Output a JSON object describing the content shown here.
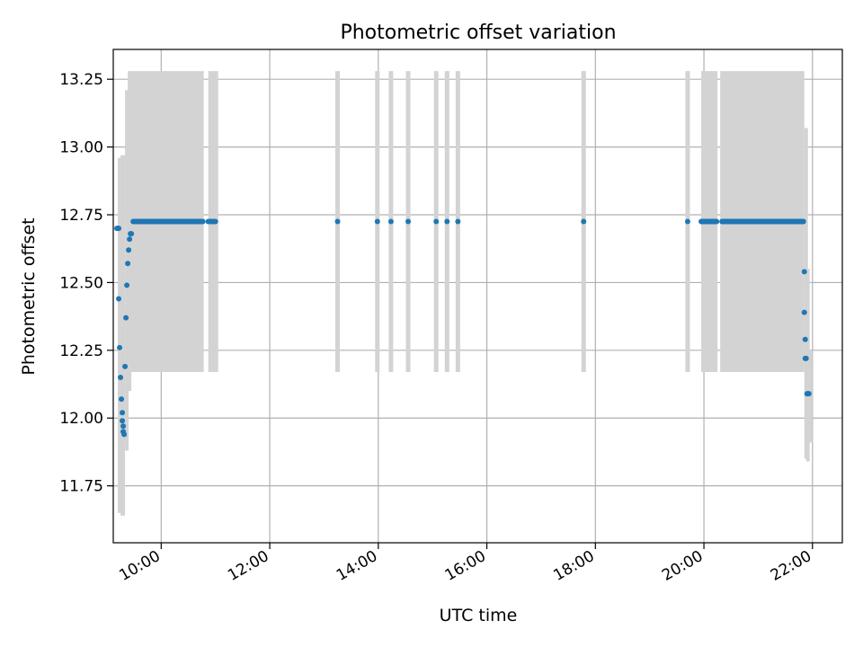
{
  "chart_data": {
    "type": "scatter",
    "title": "Photometric offset variation",
    "xlabel": "UTC time",
    "ylabel": "Photometric offset",
    "xlim": [
      "09:07",
      "22:33"
    ],
    "ylim": [
      11.54,
      13.36
    ],
    "x_ticks": [
      "10:00",
      "12:00",
      "14:00",
      "16:00",
      "18:00",
      "20:00",
      "22:00"
    ],
    "y_ticks": [
      "11.75",
      "12.00",
      "12.25",
      "12.50",
      "12.75",
      "13.00",
      "13.25"
    ],
    "grid": true,
    "colors": {
      "points": "#1f77b4",
      "error_bars": "#d3d3d3",
      "grid": "#b0b0b0"
    },
    "error_bands": [
      {
        "x_start": "09:12",
        "x_end": "09:15",
        "low": 11.65,
        "high": 12.96
      },
      {
        "x_start": "09:15",
        "x_end": "09:20",
        "low": 11.64,
        "high": 12.97
      },
      {
        "x_start": "09:20",
        "x_end": "09:23",
        "low": 11.88,
        "high": 13.21
      },
      {
        "x_start": "09:23",
        "x_end": "09:26",
        "low": 12.1,
        "high": 13.28
      },
      {
        "x_start": "09:26",
        "x_end": "10:47",
        "low": 12.17,
        "high": 13.28
      },
      {
        "x_start": "10:52",
        "x_end": "11:03",
        "low": 12.17,
        "high": 13.28
      },
      {
        "x_start": "19:57",
        "x_end": "20:15",
        "low": 12.17,
        "high": 13.28
      },
      {
        "x_start": "20:18",
        "x_end": "21:51",
        "low": 12.17,
        "high": 13.28
      },
      {
        "x_start": "21:51",
        "x_end": "21:53",
        "low": 11.85,
        "high": 13.07
      },
      {
        "x_start": "21:53",
        "x_end": "21:56",
        "low": 11.84,
        "high": 12.55
      },
      {
        "x_start": "21:56",
        "x_end": "21:59",
        "low": 11.91,
        "high": 12.25
      }
    ],
    "error_bars": [
      {
        "x": "13:15",
        "low": 12.17,
        "high": 13.28
      },
      {
        "x": "13:59",
        "low": 12.17,
        "high": 13.28
      },
      {
        "x": "14:14",
        "low": 12.17,
        "high": 13.28
      },
      {
        "x": "14:33",
        "low": 12.17,
        "high": 13.28
      },
      {
        "x": "15:04",
        "low": 12.17,
        "high": 13.28
      },
      {
        "x": "15:16",
        "low": 12.17,
        "high": 13.28
      },
      {
        "x": "15:28",
        "low": 12.17,
        "high": 13.28
      },
      {
        "x": "17:47",
        "low": 12.17,
        "high": 13.28
      },
      {
        "x": "19:42",
        "low": 12.17,
        "high": 13.28
      }
    ],
    "point_runs": [
      {
        "x_start": "09:29",
        "x_end": "10:46",
        "count": 140,
        "y": 12.725
      },
      {
        "x_start": "10:52",
        "x_end": "11:00",
        "count": 6,
        "y": 12.725
      },
      {
        "x_start": "19:57",
        "x_end": "20:14",
        "count": 30,
        "y": 12.725
      },
      {
        "x_start": "20:20",
        "x_end": "21:50",
        "count": 170,
        "y": 12.725
      }
    ],
    "points": [
      {
        "x": "09:11",
        "y": 12.7
      },
      {
        "x": "09:12",
        "y": 12.7
      },
      {
        "x": "09:13",
        "y": 12.7
      },
      {
        "x": "09:13",
        "y": 12.44
      },
      {
        "x": "09:14",
        "y": 12.26
      },
      {
        "x": "09:15",
        "y": 12.15
      },
      {
        "x": "09:16",
        "y": 12.07
      },
      {
        "x": "09:17",
        "y": 12.02
      },
      {
        "x": "09:17",
        "y": 11.99
      },
      {
        "x": "09:18",
        "y": 11.97
      },
      {
        "x": "09:18",
        "y": 11.95
      },
      {
        "x": "09:19",
        "y": 11.94
      },
      {
        "x": "09:20",
        "y": 12.19
      },
      {
        "x": "09:21",
        "y": 12.37
      },
      {
        "x": "09:22",
        "y": 12.49
      },
      {
        "x": "09:23",
        "y": 12.57
      },
      {
        "x": "09:24",
        "y": 12.62
      },
      {
        "x": "09:25",
        "y": 12.66
      },
      {
        "x": "09:26",
        "y": 12.68
      },
      {
        "x": "09:27",
        "y": 12.68
      },
      {
        "x": "13:15",
        "y": 12.725
      },
      {
        "x": "13:59",
        "y": 12.725
      },
      {
        "x": "14:14",
        "y": 12.725
      },
      {
        "x": "14:33",
        "y": 12.725
      },
      {
        "x": "15:04",
        "y": 12.725
      },
      {
        "x": "15:16",
        "y": 12.725
      },
      {
        "x": "15:28",
        "y": 12.725
      },
      {
        "x": "17:47",
        "y": 12.725
      },
      {
        "x": "19:42",
        "y": 12.725
      },
      {
        "x": "21:51",
        "y": 12.54
      },
      {
        "x": "21:51",
        "y": 12.39
      },
      {
        "x": "21:52",
        "y": 12.29
      },
      {
        "x": "21:52",
        "y": 12.22
      },
      {
        "x": "21:53",
        "y": 12.22
      },
      {
        "x": "21:54",
        "y": 12.09
      },
      {
        "x": "21:55",
        "y": 12.09
      },
      {
        "x": "21:56",
        "y": 12.09
      }
    ]
  }
}
